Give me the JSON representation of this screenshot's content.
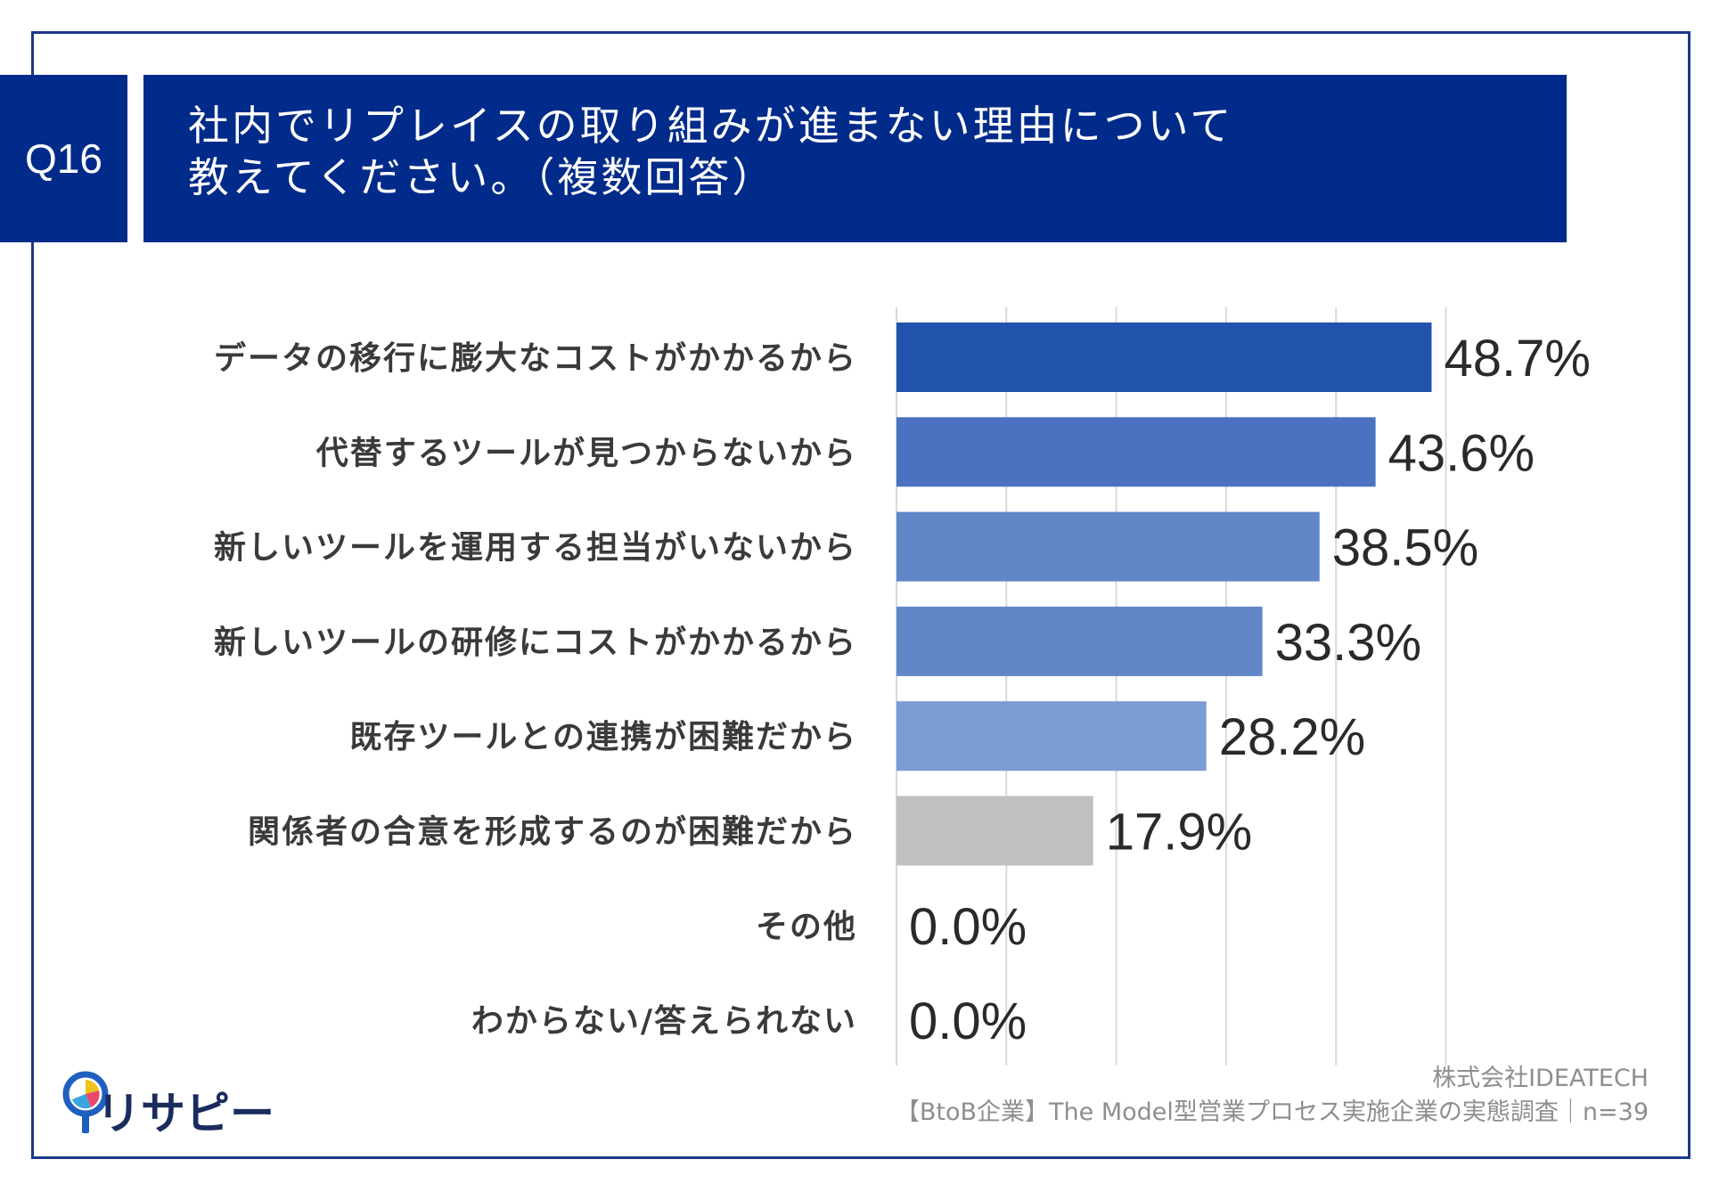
{
  "question": {
    "number": "Q16",
    "title_line1": "社内でリプレイスの取り組みが進まない理由について",
    "title_line2": "教えてください。（複数回答）"
  },
  "chart_data": {
    "type": "bar",
    "orientation": "horizontal",
    "categories": [
      "データの移行に膨大なコストがかかるから",
      "代替するツールが見つからないから",
      "新しいツールを運用する担当がいないから",
      "新しいツールの研修にコストがかかるから",
      "既存ツールとの連携が困難だから",
      "関係者の合意を形成するのが困難だから",
      "その他",
      "わからない/答えられない"
    ],
    "values": [
      48.7,
      43.6,
      38.5,
      33.3,
      28.2,
      17.9,
      0.0,
      0.0
    ],
    "value_labels": [
      "48.7%",
      "43.6%",
      "38.5%",
      "33.3%",
      "28.2%",
      "17.9%",
      "0.0%",
      "0.0%"
    ],
    "colors": [
      "#2153ad",
      "#4a72c0",
      "#6287c9",
      "#6287c9",
      "#7b9bd3",
      "#c0c0c0",
      "#c0c0c0",
      "#c0c0c0"
    ],
    "xlim": [
      0,
      60
    ],
    "grid": true,
    "grid_values": [
      0,
      10,
      20,
      30,
      40,
      50
    ]
  },
  "logo": {
    "text": "リサピー",
    "name": "risapi-logo"
  },
  "footer": {
    "company": "株式会社IDEATECH",
    "source": "【BtoB企業】The Model型営業プロセス実施企業の実態調査｜n=39"
  }
}
